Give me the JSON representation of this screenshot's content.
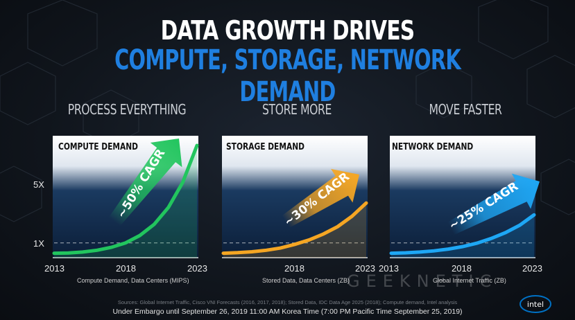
{
  "title": "DATA GROWTH DRIVES",
  "subtitle": "COMPUTE, STORAGE, NETWORK DEMAND",
  "colors": {
    "accent": "#1f7fe0",
    "compute": "#22c55e",
    "storage": "#f5a623",
    "network": "#1ea7f5"
  },
  "chart_data": [
    {
      "type": "area",
      "heading": "PROCESS EVERYTHING",
      "title": "COMPUTE DEMAND",
      "annotation": "~50% CAGR",
      "x": [
        2013,
        2014,
        2015,
        2016,
        2017,
        2018,
        2019,
        2020,
        2021,
        2022,
        2023
      ],
      "values": [
        0.3,
        0.32,
        0.38,
        0.5,
        0.7,
        1.0,
        1.5,
        2.25,
        3.4,
        5.1,
        7.6
      ],
      "xticks": [
        "2013",
        "2018",
        "2023"
      ],
      "yticks": [
        "1X",
        "5X"
      ],
      "baseline": "1X",
      "xlabel": "Compute Demand, Data Centers (MIPS)",
      "ylim": [
        0,
        7.6
      ],
      "color": "#22c55e"
    },
    {
      "type": "area",
      "heading": "STORE MORE",
      "title": "STORAGE DEMAND",
      "annotation": "~30% CAGR",
      "x": [
        2013,
        2014,
        2015,
        2016,
        2017,
        2018,
        2019,
        2020,
        2021,
        2022,
        2023
      ],
      "values": [
        0.3,
        0.34,
        0.4,
        0.5,
        0.65,
        0.9,
        1.2,
        1.6,
        2.1,
        2.8,
        3.7
      ],
      "xticks": [
        "2018",
        "2023"
      ],
      "xlabel": "Stored Data, Data Centers (ZB)",
      "ylim": [
        0,
        7.6
      ],
      "color": "#f5a623"
    },
    {
      "type": "area",
      "heading": "MOVE FASTER",
      "title": "NETWORK DEMAND",
      "annotation": "~25% CAGR",
      "x": [
        2013,
        2014,
        2015,
        2016,
        2017,
        2018,
        2019,
        2020,
        2021,
        2022,
        2023
      ],
      "values": [
        0.3,
        0.33,
        0.38,
        0.46,
        0.58,
        0.75,
        0.98,
        1.3,
        1.7,
        2.2,
        2.9
      ],
      "xticks": [
        "2013",
        "2018",
        "2023"
      ],
      "xlabel": "Global Internet Traffic (ZB)",
      "ylim": [
        0,
        7.6
      ],
      "color": "#1ea7f5"
    }
  ],
  "source": "Sources: Global Internet Traffic, Cisco VNI Forecasts (2016, 2017, 2018); Stored Data, IDC Data Age 2025 (2018); Compute demand, Intel analysis",
  "embargo": "Under Embargo until September 26, 2019 11:00 AM Korea Time (7:00 PM Pacific Time September 25, 2019)",
  "watermark": "GEEKNETIC",
  "logo_text": "intel"
}
